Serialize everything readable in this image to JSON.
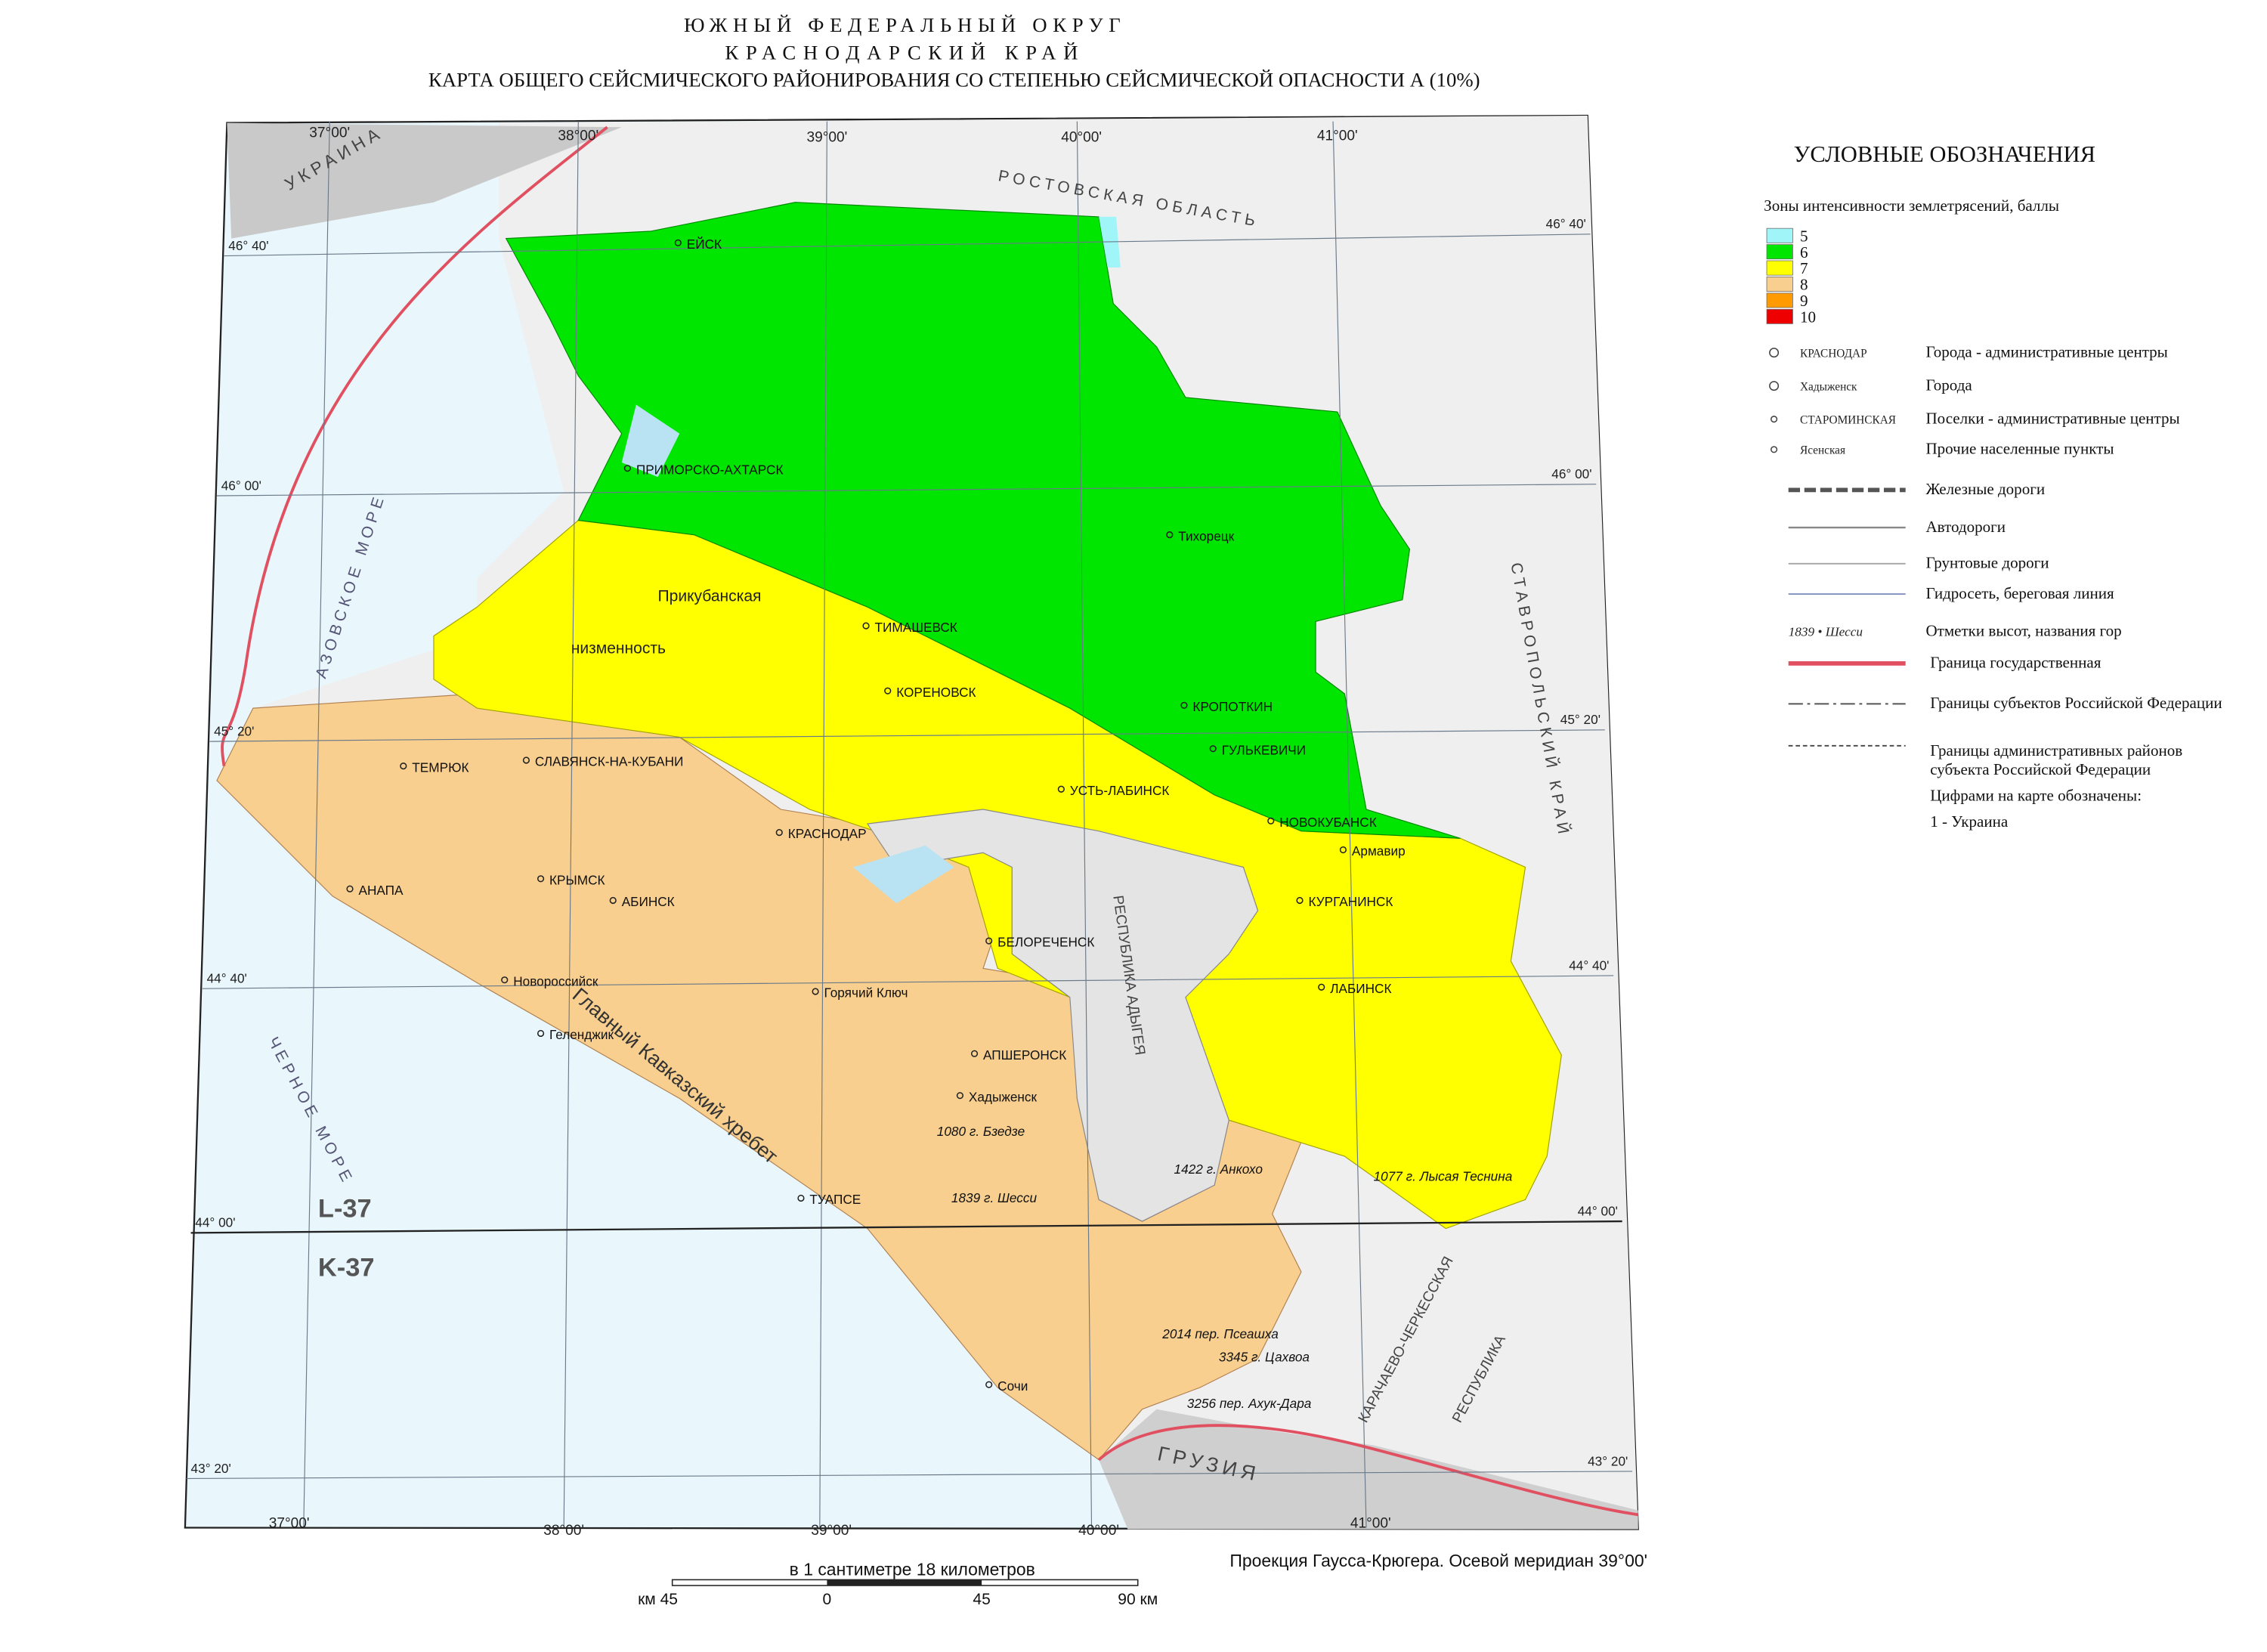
{
  "title": {
    "lines": [
      "ЮЖНЫЙ ФЕДЕРАЛЬНЫЙ ОКРУГ",
      "КРАСНОДАРСКИЙ КРАЙ",
      "КАРТА ОБЩЕГО СЕЙСМИЧЕСКОГО РАЙОНИРОВАНИЯ СО СТЕПЕНЬЮ СЕЙСМИЧЕСКОЙ ОПАСНОСТИ А (10%)"
    ]
  },
  "legend": {
    "title": "УСЛОВНЫЕ ОБОЗНАЧЕНИЯ",
    "zones_title": "Зоны интенсивности землетрясений, баллы",
    "zones": [
      {
        "value": 5,
        "color": "#9ff5f7"
      },
      {
        "value": 6,
        "color": "#00e600"
      },
      {
        "value": 7,
        "color": "#ffff00"
      },
      {
        "value": 8,
        "color": "#f8cf8e"
      },
      {
        "value": 9,
        "color": "#ff9a00"
      },
      {
        "value": 10,
        "color": "#ee0000"
      }
    ],
    "items": [
      {
        "symbol": "КРАСНОДАР",
        "description": "Города - административные центры"
      },
      {
        "symbol": "Хадыженск",
        "description": "Города"
      },
      {
        "symbol": "СТАРОМИНСКАЯ",
        "description": "Поселки - административные центры"
      },
      {
        "symbol": "Ясенская",
        "description": "Прочие населенные пункты"
      },
      {
        "description": "Железные дороги"
      },
      {
        "description": "Автодороги"
      },
      {
        "description": "Грунтовые дороги"
      },
      {
        "description": "Гидросеть, береговая линия"
      },
      {
        "symbol": "1839 • Шесси",
        "description": "Отметки высот, названия гор"
      },
      {
        "description": "Граница государственная"
      },
      {
        "description": "Границы субъектов Российской Федерации"
      },
      {
        "lines": [
          "Границы административных районов",
          "субъекта Российской Федерации"
        ]
      },
      {
        "description": "Цифрами на карте обозначены:"
      },
      {
        "description": "1  -  Украина"
      }
    ]
  },
  "map_labels": {
    "cities": [
      "ЕЙСК",
      "ПРИМОРСКО-АХТАРСК",
      "ТИМАШЕВСК",
      "КОРЕНОВСК",
      "КРОПОТКИН",
      "ГУЛЬКЕВИЧИ",
      "УСТЬ-ЛАБИНСК",
      "СЛАВЯНСК-НА-КУБАНИ",
      "ТЕМРЮК",
      "КРАСНОДАР",
      "НОВОКУБАНСК",
      "КРЫМСК",
      "АБИНСК",
      "АНАПА",
      "КУРГАНИНСК",
      "БЕЛОРЕЧЕНСК",
      "ЛАБИНСК",
      "Новороссийск",
      "Геленджик",
      "АПШЕРОНСК",
      "ТУАПСЕ",
      "Сочи",
      "Горячий Ключ",
      "Тихорецк",
      "Хадыженск",
      "Армавир"
    ],
    "regions": [
      "УКРАИНА",
      "РОСТОВСКАЯ ОБЛАСТЬ",
      "СТАВРОПОЛЬСКИЙ КРАЙ",
      "АЗОВСКОЕ МОРЕ",
      "ЧЕРНОЕ МОРЕ",
      "ГРУЗИЯ",
      "РЕСПУБЛИКА АДЫГЕЯ",
      "КАРАЧАЕВО-ЧЕРКЕССКАЯ",
      "РЕСПУБЛИКА",
      "Главный Кавказский хребет",
      "L-37",
      "K-37",
      "Прикубанская",
      "низменность"
    ],
    "peaks": [
      "1839 г. Шесси",
      "1080 г. Бзедзе",
      "1422 г. Анкохо",
      "1077 г. Лысая Теснина",
      "2014 пер. Псеашха",
      "3345 г. Цахвоа",
      "3256 пер. Ахук-Дара"
    ],
    "coordinates": {
      "top": [
        "37°00'",
        "38°00'",
        "39°00'",
        "40°00'",
        "41°00'"
      ],
      "bottom": [
        "37°00'",
        "38°00'",
        "39°00'",
        "40°00'",
        "41°00'"
      ],
      "left": [
        "46° 40'",
        "46° 00'",
        "45° 20'",
        "44° 40'",
        "44° 00'",
        "43° 20'"
      ],
      "right": [
        "46° 40'",
        "46° 00'",
        "45° 20'",
        "44° 40'",
        "44° 00'",
        "43° 20'"
      ]
    }
  },
  "scale": {
    "label": "в 1 сантиметре 18 километров",
    "ticks": [
      "км 45",
      "0",
      "45",
      "90 км"
    ]
  },
  "projection": "Проекция Гаусса-Крюгера. Осевой меридиан 39°00'"
}
